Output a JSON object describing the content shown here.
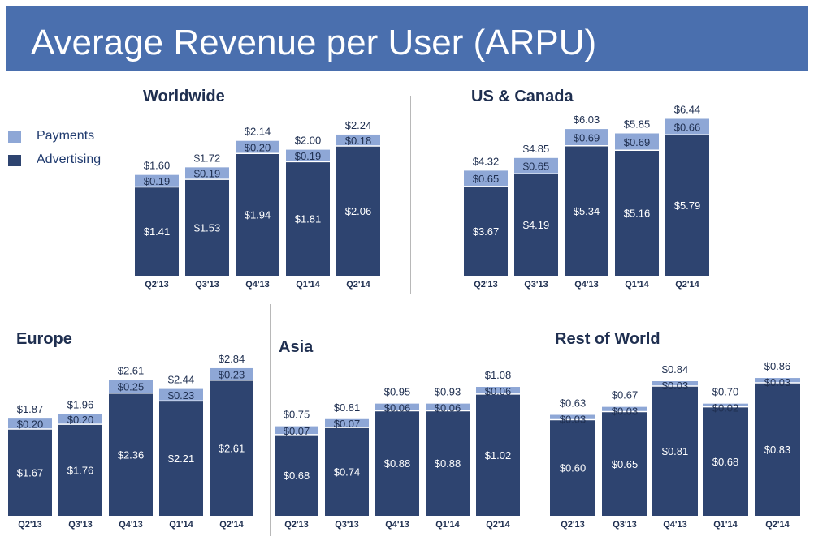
{
  "page": {
    "title": "Average Revenue per User (ARPU)"
  },
  "colors": {
    "header": "#4a6fae",
    "payments": "#8ea7d6",
    "advertising": "#2e4470"
  },
  "legend": [
    {
      "label": "Payments",
      "color": "#8ea7d6"
    },
    {
      "label": "Advertising",
      "color": "#2e4470"
    }
  ],
  "chart_data": [
    {
      "type": "bar",
      "stacked": true,
      "title": "Worldwide",
      "categories": [
        "Q2'13",
        "Q3'13",
        "Q4'13",
        "Q1'14",
        "Q2'14"
      ],
      "series": [
        {
          "name": "Advertising",
          "values": [
            1.41,
            1.53,
            1.94,
            1.81,
            2.06
          ],
          "labels": [
            "$1.41",
            "$1.53",
            "$1.94",
            "$1.81",
            "$2.06"
          ]
        },
        {
          "name": "Payments",
          "values": [
            0.19,
            0.19,
            0.2,
            0.19,
            0.18
          ],
          "labels": [
            "$0.19",
            "$0.19",
            "$0.20",
            "$0.19",
            "$0.18"
          ]
        }
      ],
      "totals": [
        1.6,
        1.72,
        2.14,
        2.0,
        2.24
      ],
      "total_labels": [
        "$1.60",
        "$1.72",
        "$2.14",
        "$2.00",
        "$2.24"
      ]
    },
    {
      "type": "bar",
      "stacked": true,
      "title": "US & Canada",
      "categories": [
        "Q2'13",
        "Q3'13",
        "Q4'13",
        "Q1'14",
        "Q2'14"
      ],
      "series": [
        {
          "name": "Advertising",
          "values": [
            3.67,
            4.19,
            5.34,
            5.16,
            5.79
          ],
          "labels": [
            "$3.67",
            "$4.19",
            "$5.34",
            "$5.16",
            "$5.79"
          ]
        },
        {
          "name": "Payments",
          "values": [
            0.65,
            0.65,
            0.69,
            0.69,
            0.66
          ],
          "labels": [
            "$0.65",
            "$0.65",
            "$0.69",
            "$0.69",
            "$0.66"
          ]
        }
      ],
      "totals": [
        4.32,
        4.85,
        6.03,
        5.85,
        6.44
      ],
      "total_labels": [
        "$4.32",
        "$4.85",
        "$6.03",
        "$5.85",
        "$6.44"
      ]
    },
    {
      "type": "bar",
      "stacked": true,
      "title": "Europe",
      "categories": [
        "Q2'13",
        "Q3'13",
        "Q4'13",
        "Q1'14",
        "Q2'14"
      ],
      "series": [
        {
          "name": "Advertising",
          "values": [
            1.67,
            1.76,
            2.36,
            2.21,
            2.61
          ],
          "labels": [
            "$1.67",
            "$1.76",
            "$2.36",
            "$2.21",
            "$2.61"
          ]
        },
        {
          "name": "Payments",
          "values": [
            0.2,
            0.2,
            0.25,
            0.23,
            0.23
          ],
          "labels": [
            "$0.20",
            "$0.20",
            "$0.25",
            "$0.23",
            "$0.23"
          ]
        }
      ],
      "totals": [
        1.87,
        1.96,
        2.61,
        2.44,
        2.84
      ],
      "total_labels": [
        "$1.87",
        "$1.96",
        "$2.61",
        "$2.44",
        "$2.84"
      ]
    },
    {
      "type": "bar",
      "stacked": true,
      "title": "Asia",
      "categories": [
        "Q2'13",
        "Q3'13",
        "Q4'13",
        "Q1'14",
        "Q2'14"
      ],
      "series": [
        {
          "name": "Advertising",
          "values": [
            0.68,
            0.74,
            0.88,
            0.88,
            1.02
          ],
          "labels": [
            "$0.68",
            "$0.74",
            "$0.88",
            "$0.88",
            "$1.02"
          ]
        },
        {
          "name": "Payments",
          "values": [
            0.07,
            0.07,
            0.06,
            0.06,
            0.06
          ],
          "labels": [
            "$0.07",
            "$0.07",
            "$0.06",
            "$0.06",
            "$0.06"
          ]
        }
      ],
      "totals": [
        0.75,
        0.81,
        0.95,
        0.93,
        1.08
      ],
      "total_labels": [
        "$0.75",
        "$0.81",
        "$0.95",
        "$0.93",
        "$1.08"
      ]
    },
    {
      "type": "bar",
      "stacked": true,
      "title": "Rest of World",
      "categories": [
        "Q2'13",
        "Q3'13",
        "Q4'13",
        "Q1'14",
        "Q2'14"
      ],
      "series": [
        {
          "name": "Advertising",
          "values": [
            0.6,
            0.65,
            0.81,
            0.68,
            0.83
          ],
          "labels": [
            "$0.60",
            "$0.65",
            "$0.81",
            "$0.68",
            "$0.83"
          ]
        },
        {
          "name": "Payments",
          "values": [
            0.03,
            0.03,
            0.03,
            0.02,
            0.03
          ],
          "labels": [
            "$0.03",
            "$0.03",
            "$0.03",
            "$0.02",
            "$0.03"
          ]
        }
      ],
      "totals": [
        0.63,
        0.67,
        0.84,
        0.7,
        0.86
      ],
      "total_labels": [
        "$0.63",
        "$0.67",
        "$0.84",
        "$0.70",
        "$0.86"
      ]
    }
  ]
}
